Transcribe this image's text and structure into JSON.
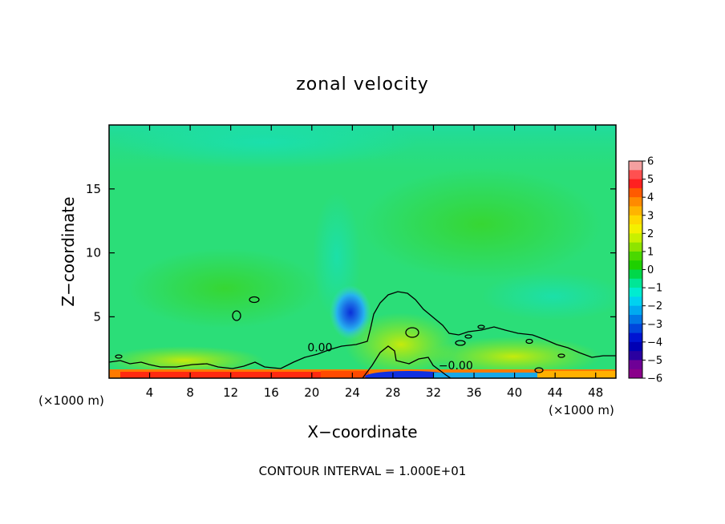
{
  "chart_data": {
    "type": "heatmap",
    "title": "zonal velocity",
    "xlabel": "X−coordinate",
    "ylabel": "Z−coordinate",
    "x_unit_label_left": "(×1000 m)",
    "x_unit_label_right": "(×1000 m)",
    "xlim": [
      0,
      50
    ],
    "ylim": [
      0.2,
      20
    ],
    "x_ticks": [
      4,
      8,
      12,
      16,
      20,
      24,
      28,
      32,
      36,
      40,
      44,
      48
    ],
    "x_tick_labels": [
      "4",
      "8",
      "12",
      "16",
      "20",
      "24",
      "28",
      "32",
      "36",
      "40",
      "44",
      "48"
    ],
    "y_ticks": [
      5,
      10,
      15
    ],
    "y_tick_labels": [
      "5",
      "10",
      "15"
    ],
    "grid": false,
    "colorbar": {
      "min": -6,
      "max": 6,
      "tick_values": [
        6,
        5,
        4,
        3,
        2,
        1,
        0,
        -1,
        -2,
        -3,
        -4,
        -5,
        -6
      ],
      "tick_labels": [
        "6",
        "5",
        "4",
        "3",
        "2",
        "1",
        "0",
        "−1",
        "−2",
        "−3",
        "−4",
        "−5",
        "−6"
      ],
      "colors": [
        "#f4a0a0",
        "#ff2020",
        "#ff3a00",
        "#ff8a00",
        "#ffc000",
        "#f6f000",
        "#c8f000",
        "#5ad800",
        "#1ed000",
        "#00e66a",
        "#00e6c8",
        "#00c8f0",
        "#0096e6",
        "#0050dc",
        "#0000c8",
        "#00008c",
        "#700090",
        "#a000b4",
        "#b050d0",
        "#800080",
        "#8000a0",
        "#8a008a",
        "#6e0096",
        "#78008c"
      ]
    },
    "contour_labels": [
      {
        "text": "0.00",
        "x": 20.8,
        "z": 2.3
      },
      {
        "text": "−0.00",
        "x": 34.2,
        "z": 0.9
      }
    ],
    "contour_interval_text": "CONTOUR INTERVAL = 1.000E+01",
    "field_features": {
      "background_value": -0.6,
      "jet_min": {
        "x": 23.8,
        "z": 5.1,
        "value": -3.2
      },
      "surface_max": {
        "x": 9.5,
        "z": 0.4,
        "value": 4.5
      },
      "surface_min": {
        "x": 29.0,
        "z": 0.4,
        "value": -5.0
      },
      "zero_contour_dome_peak": {
        "x": 28.6,
        "z": 6.8
      }
    }
  }
}
